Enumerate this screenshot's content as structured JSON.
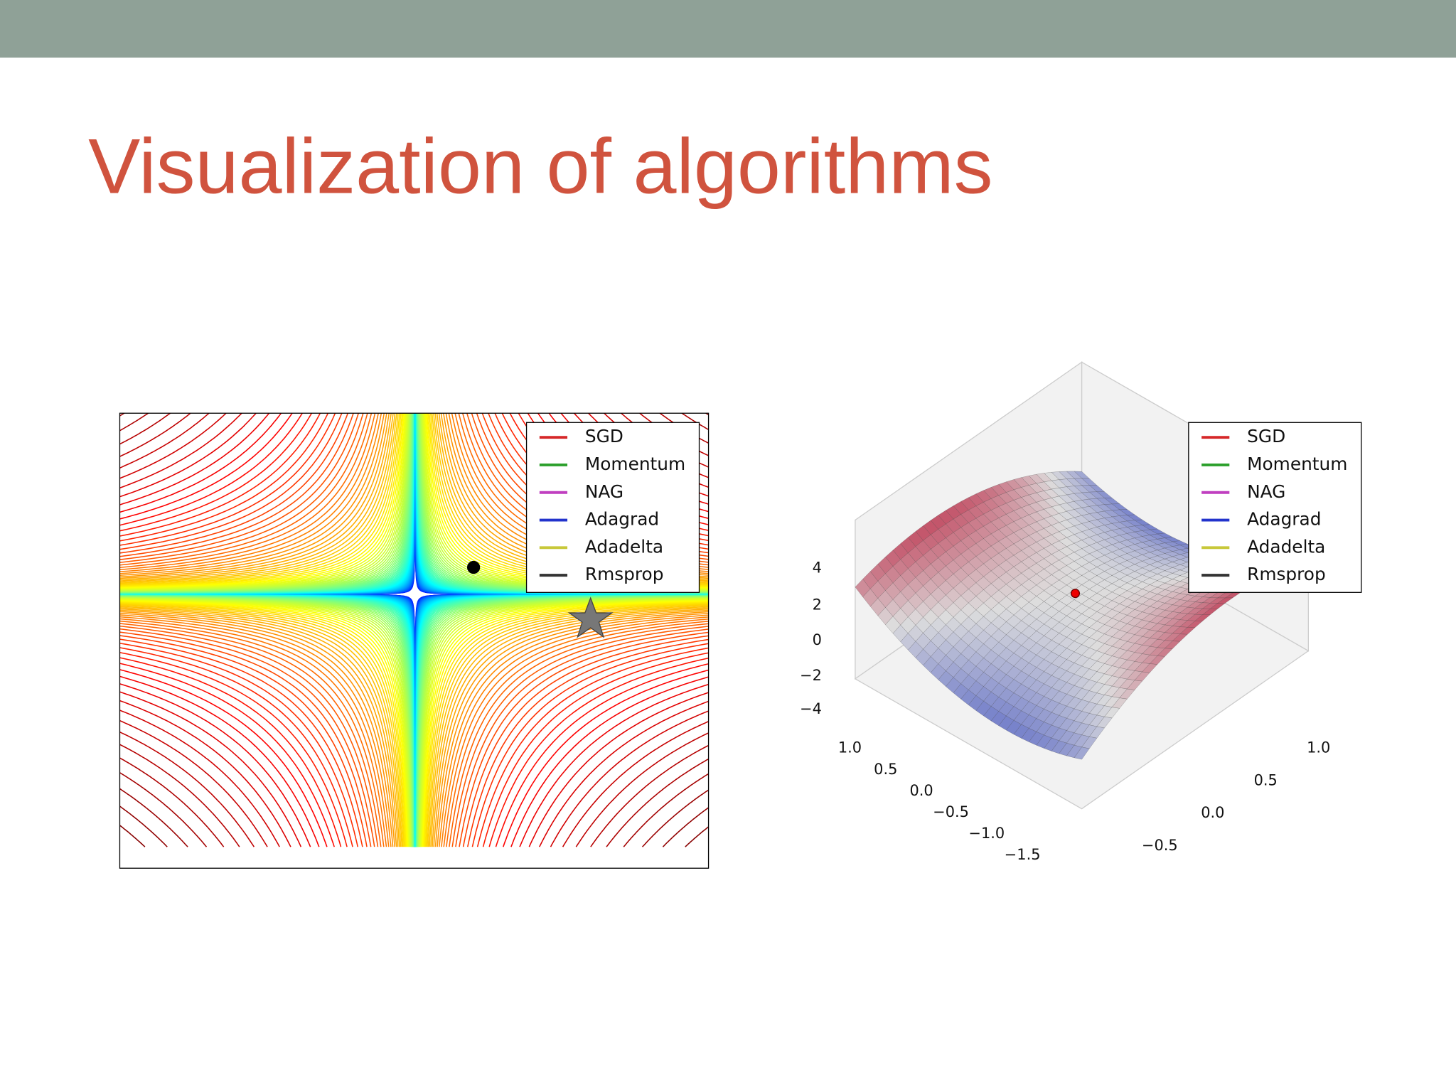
{
  "slide": {
    "title": "Visualization of algorithms"
  },
  "left_plot": {
    "legend": [
      {
        "name": "SGD",
        "color": "#d62728"
      },
      {
        "name": "Momentum",
        "color": "#2ca02c"
      },
      {
        "name": "NAG",
        "color": "#c03fc0"
      },
      {
        "name": "Adagrad",
        "color": "#2233cc"
      },
      {
        "name": "Adadelta",
        "color": "#c8c83a"
      },
      {
        "name": "Rmsprop",
        "color": "#333333"
      }
    ]
  },
  "right_plot": {
    "legend": [
      {
        "name": "SGD",
        "color": "#d62728"
      },
      {
        "name": "Momentum",
        "color": "#2ca02c"
      },
      {
        "name": "NAG",
        "color": "#c03fc0"
      },
      {
        "name": "Adagrad",
        "color": "#2233cc"
      },
      {
        "name": "Adadelta",
        "color": "#c8c83a"
      },
      {
        "name": "Rmsprop",
        "color": "#333333"
      }
    ],
    "z_ticks": [
      "4",
      "2",
      "0",
      "−2",
      "−4"
    ],
    "x_ticks": [
      "1.0",
      "0.5",
      "0.0",
      "−0.5",
      "−1.0",
      "−1.5"
    ],
    "y_ticks": [
      "1.0",
      "0.5",
      "0.0",
      "−0.5"
    ]
  }
}
